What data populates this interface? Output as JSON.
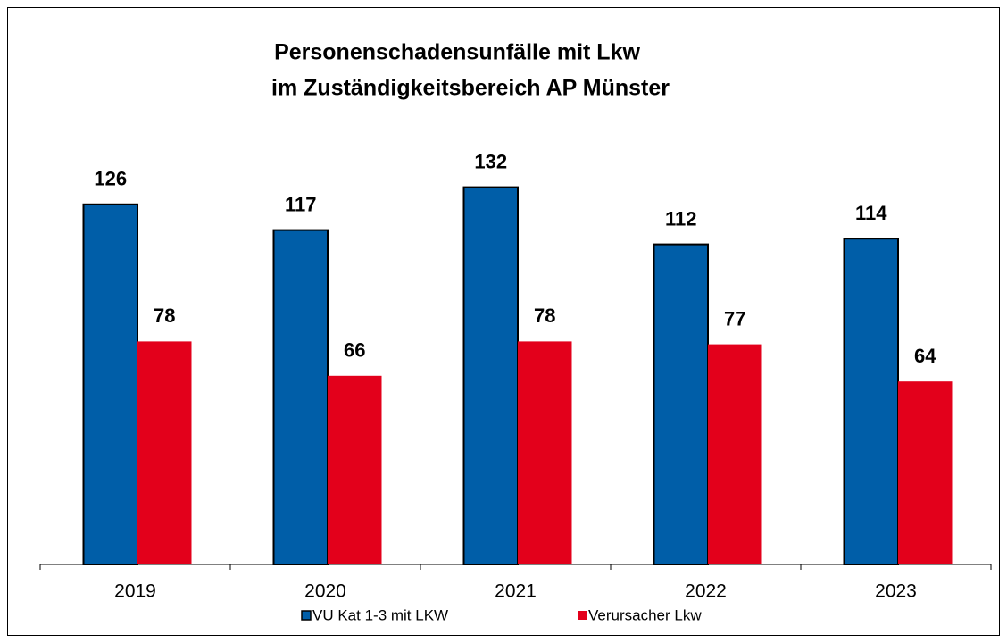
{
  "chart_data": {
    "type": "bar",
    "title": [
      "Personenschadensunfälle mit Lkw",
      "im Zuständigkeitsbereich AP Münster"
    ],
    "categories": [
      "2019",
      "2020",
      "2021",
      "2022",
      "2023"
    ],
    "series": [
      {
        "name": "VU Kat 1-3 mit LKW",
        "color": "#005ea8",
        "values": [
          126,
          117,
          132,
          112,
          114
        ]
      },
      {
        "name": "Verursacher Lkw",
        "color": "#e3001b",
        "values": [
          78,
          66,
          78,
          77,
          64
        ]
      }
    ],
    "ylim": [
      0,
      150
    ],
    "legend": "bottom"
  }
}
